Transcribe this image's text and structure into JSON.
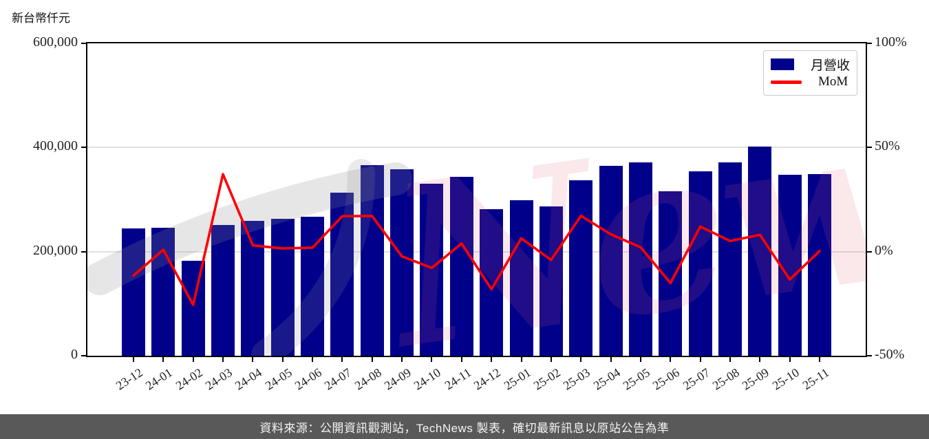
{
  "footer": {
    "text": "資料來源：公開資訊觀測站，TechNews 製表，確切最新訊息以原站公告為準"
  },
  "watermark": {
    "text": "News",
    "icon": "technews-swoosh"
  },
  "chart_data": {
    "type": "bar",
    "title": "",
    "categories": [
      "23-12",
      "24-01",
      "24-02",
      "24-03",
      "24-04",
      "24-05",
      "24-06",
      "24-07",
      "24-08",
      "24-09",
      "24-10",
      "24-11",
      "24-12",
      "25-01",
      "25-02",
      "25-03",
      "25-04",
      "25-05",
      "25-06",
      "25-07",
      "25-08",
      "25-09",
      "25-10",
      "25-11"
    ],
    "series": [
      {
        "name": "月營收",
        "type": "bar",
        "axis": "left",
        "color": "#00008b",
        "values": [
          244000,
          246000,
          183000,
          251000,
          258500,
          262500,
          267500,
          313000,
          366500,
          358000,
          330000,
          343000,
          281000,
          299000,
          287000,
          336500,
          364500,
          372000,
          316000,
          354000,
          372000,
          402000,
          348000,
          349000
        ]
      },
      {
        "name": "MoM",
        "type": "line",
        "axis": "right",
        "color": "#ff0000",
        "unit": "%",
        "values": [
          -11.5,
          0.9,
          -25.6,
          37.2,
          3.0,
          1.5,
          1.9,
          17.0,
          17.1,
          -2.3,
          -7.8,
          3.9,
          -18.1,
          6.4,
          -4.0,
          17.2,
          8.3,
          2.1,
          -15.1,
          12.0,
          5.1,
          8.1,
          -13.4,
          0.3
        ]
      }
    ],
    "left_axis": {
      "title": "新台幣仟元",
      "range": [
        0,
        600000
      ],
      "ticks": [
        "0",
        "200,000",
        "400,000",
        "600,000"
      ]
    },
    "right_axis": {
      "range": [
        -50,
        100
      ],
      "ticks": [
        "-50%",
        "0%",
        "50%",
        "100%"
      ]
    },
    "grid": "horizontal",
    "legend_position": "top-right"
  }
}
